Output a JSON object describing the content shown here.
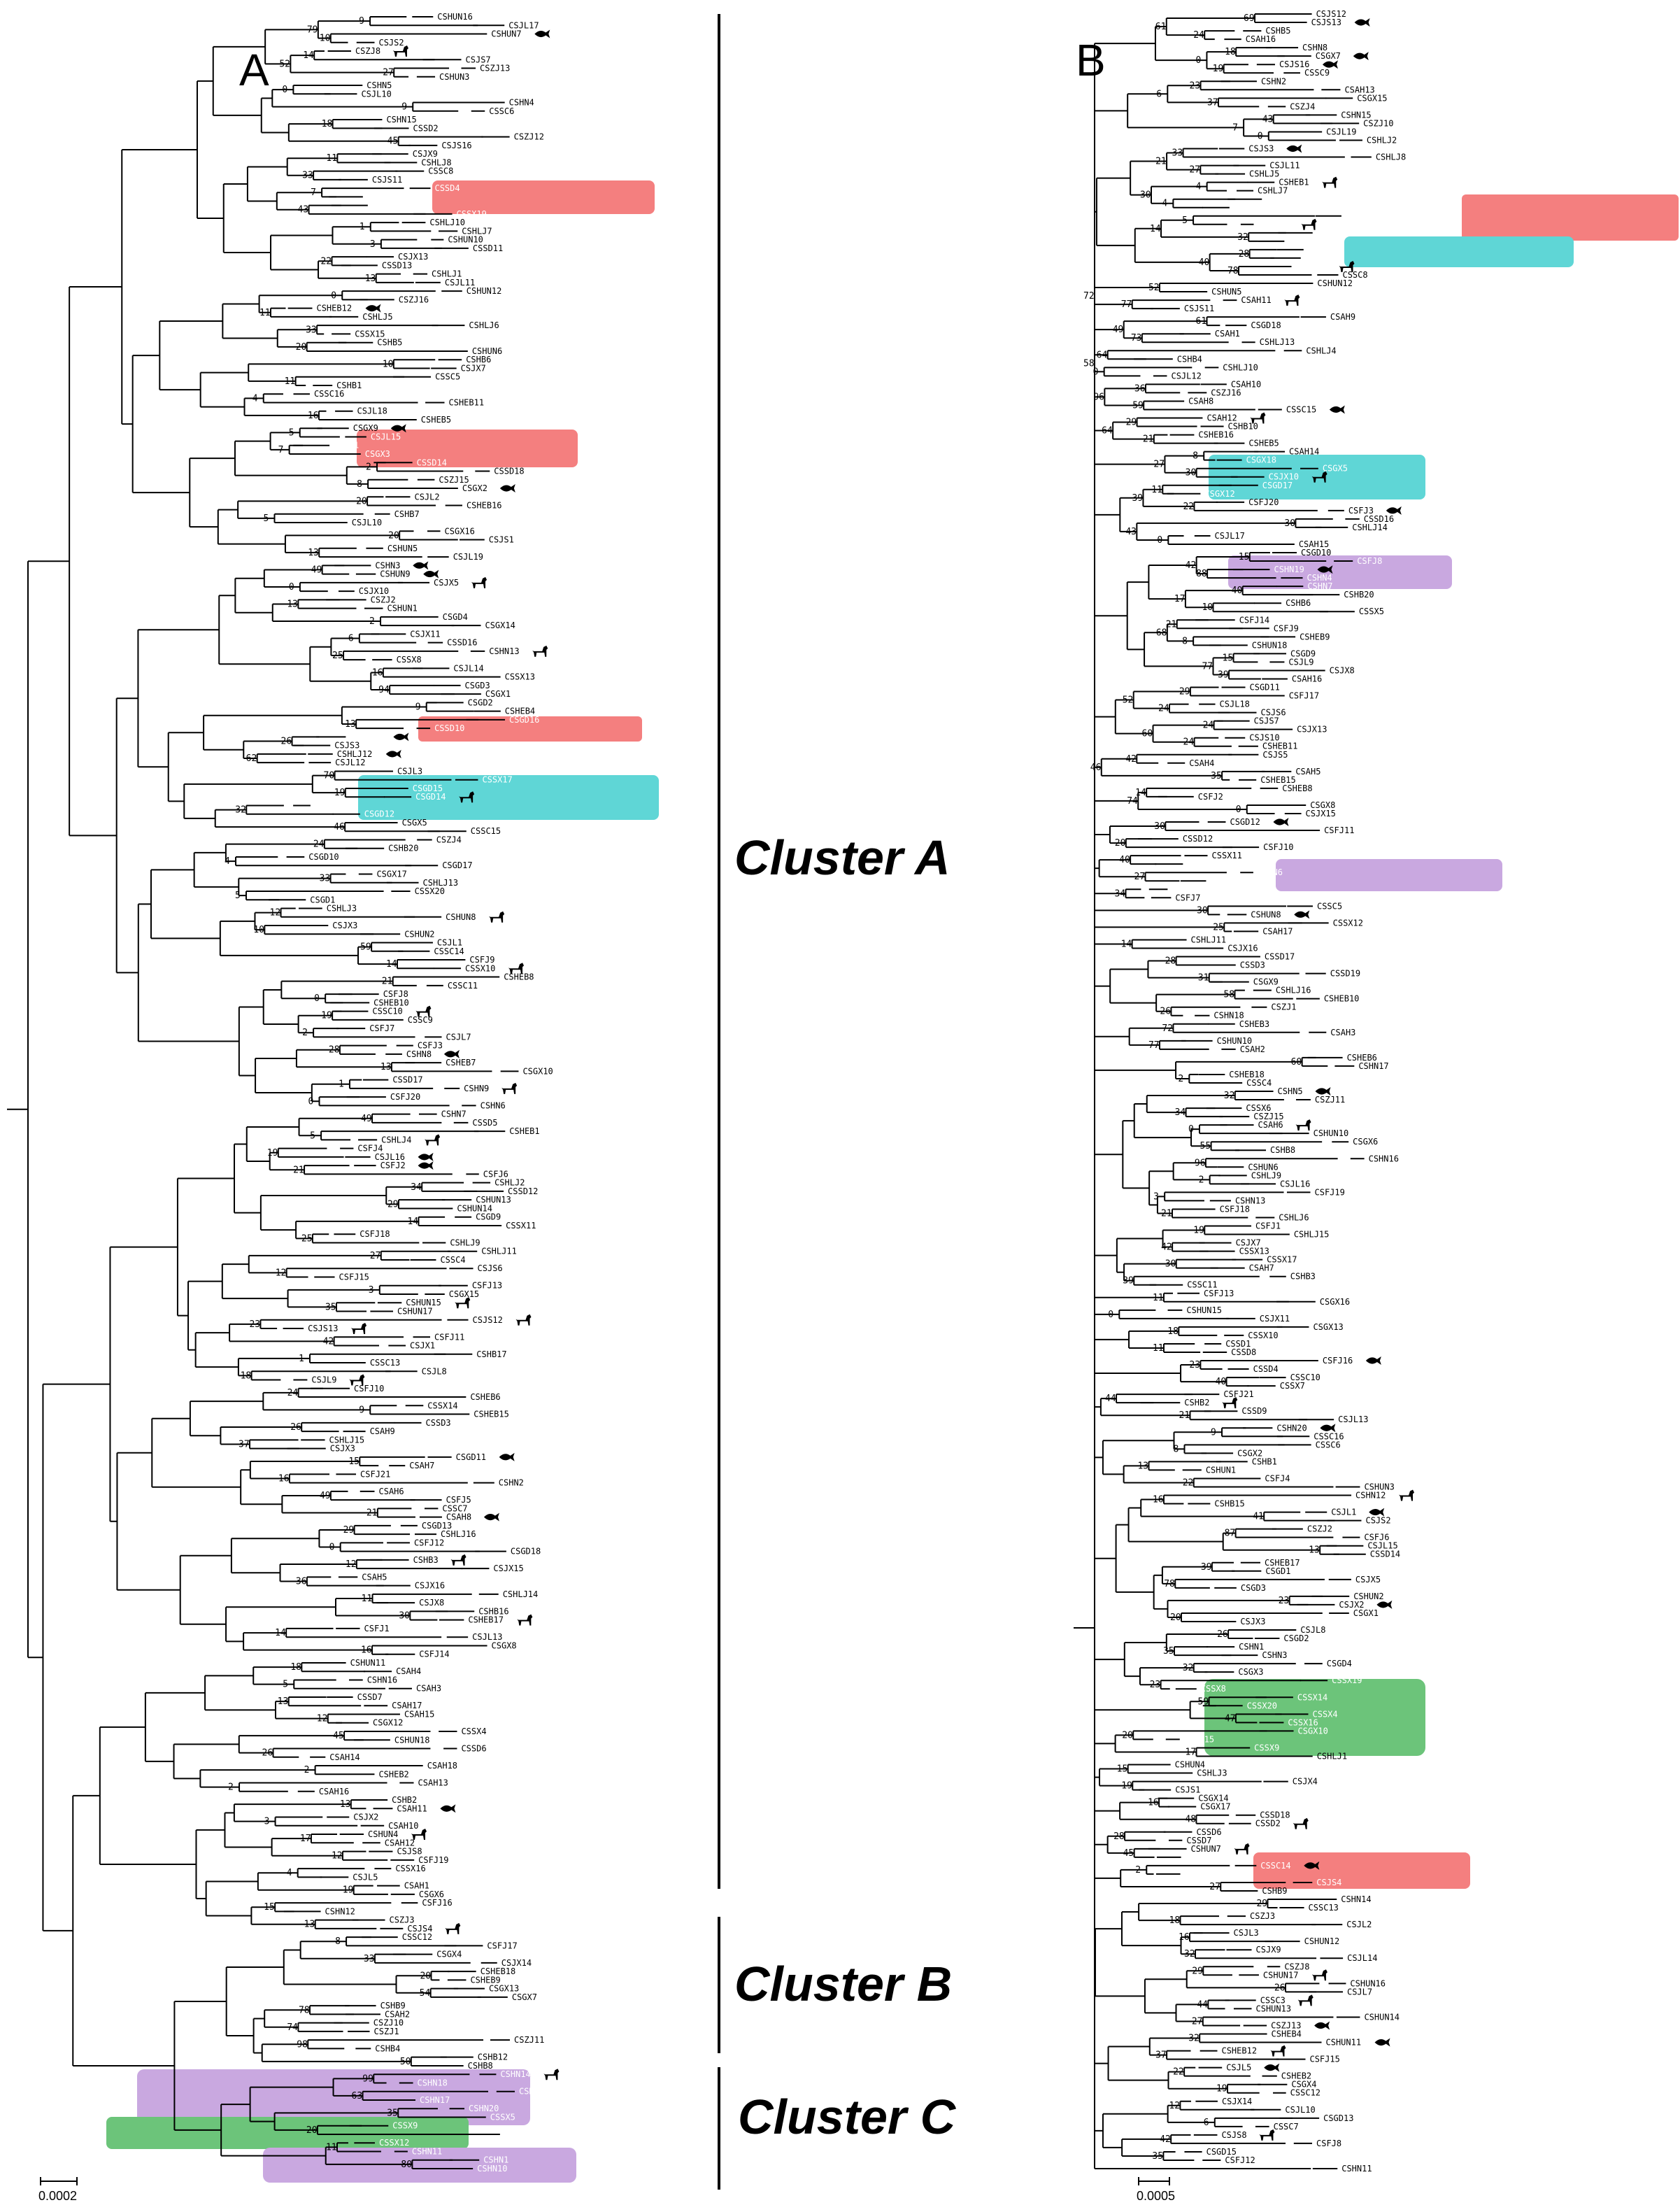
{
  "panels": {
    "a": {
      "letter": "A",
      "scale": "0.0002"
    },
    "b": {
      "letter": "B",
      "scale": "0.0005"
    }
  },
  "clusters": [
    "Cluster A",
    "Cluster B",
    "Cluster C"
  ],
  "colors": {
    "red": "#f47f7f",
    "cyan": "#5fd6d6",
    "purple": "#c9a8e0",
    "green": "#6cc47a",
    "branch": "#000000"
  },
  "icons": [
    "dog-icon",
    "fish-icon"
  ],
  "tree_a": {
    "leaves": [
      "CSHUN16",
      "CSJL17",
      "CSHUN7",
      "CSJS2",
      "CSZJ8",
      "CSJS7",
      "CSZJ13",
      "CSHUN3",
      "CSHN5",
      "CSJL10",
      "CSHN4",
      "CSSC6",
      "CSHN15",
      "CSSD2",
      "CSZJ12",
      "CSJS16",
      "CSJX9",
      "CSHLJ8",
      "CSSC8",
      "CSJS11",
      "CSSD4",
      "CSSX6",
      "CSSD9",
      "CSSX19",
      "CSHLJ10",
      "CSHLJ7",
      "CSHUN10",
      "CSSD11",
      "CSJX13",
      "CSSD13",
      "CSHLJ1",
      "CSJL11",
      "CSHUN12",
      "CSZJ16",
      "CSHEB12",
      "CSHLJ5",
      "CSHLJ6",
      "CSSX15",
      "CSHB5",
      "CSHUN6",
      "CSHB6",
      "CSJX7",
      "CSSC5",
      "CSHB1",
      "CSSC16",
      "CSHEB11",
      "CSJL18",
      "CSHEB5",
      "CSGX9",
      "CSJL15",
      "CSSD1",
      "CSGX3",
      "CSSD14",
      "CSSD18",
      "CSZJ15",
      "CSGX2",
      "CSJL2",
      "CSHEB16",
      "CSHB7",
      "CSJL10",
      "CSGX16",
      "CSJS1",
      "CSHUN5",
      "CSJL19",
      "CSHN3",
      "CSHUN9",
      "CSJX5",
      "CSJX10",
      "CSZJ2",
      "CSHUN1",
      "CSGD4",
      "CSGX14",
      "CSJX11",
      "CSSD16",
      "CSHN13",
      "CSSX8",
      "CSJL14",
      "CSSX13",
      "CSGD3",
      "CSGX1",
      "CSGD2",
      "CSHEB4",
      "CSGD16",
      "CSSD10",
      "CSSD15",
      "CSJS3",
      "CSHLJ12",
      "CSJL12",
      "CSJL3",
      "CSSX17",
      "CSGD15",
      "CSGD14",
      "CSGX11",
      "CSGD12",
      "CSGX5",
      "CSSC15",
      "CSZJ4",
      "CSHB20",
      "CSGD10",
      "CSGD17",
      "CSGX17",
      "CSHLJ13",
      "CSSX20",
      "CSGD1",
      "CSHLJ3",
      "CSHUN8",
      "CSJX3",
      "CSHUN2",
      "CSJL1",
      "CSSC14",
      "CSFJ9",
      "CSSX10",
      "CSHEB8",
      "CSSC11",
      "CSFJ8",
      "CSHEB10",
      "CSSC10",
      "CSSC9",
      "CSFJ7",
      "CSJL7",
      "CSFJ3",
      "CSHN8",
      "CSHEB7",
      "CSGX10",
      "CSSD17",
      "CSHN9",
      "CSFJ20",
      "CSHN6",
      "CSHN7",
      "CSSD5",
      "CSHEB1",
      "CSHLJ4",
      "CSFJ4",
      "CSJL16",
      "CSFJ2",
      "CSFJ6",
      "CSHLJ2",
      "CSSD12",
      "CSHUN13",
      "CSHUN14",
      "CSGD9",
      "CSSX11",
      "CSFJ18",
      "CSHLJ9",
      "CSHLJ11",
      "CSSC4",
      "CSJS6",
      "CSFJ15",
      "CSFJ13",
      "CSGX15",
      "CSHUN15",
      "CSHUN17",
      "CSJS12",
      "CSJS13",
      "CSFJ11",
      "CSJX1",
      "CSHB17",
      "CSSC13",
      "CSJL8",
      "CSJL9",
      "CSFJ10",
      "CSHEB6",
      "CSSX14",
      "CSHEB15",
      "CSSD3",
      "CSAH9",
      "CSHLJ15",
      "CSJX3",
      "CSGD11",
      "CSAH7",
      "CSFJ21",
      "CSHN2",
      "CSAH6",
      "CSFJ5",
      "CSSC7",
      "CSAH8",
      "CSGD13",
      "CSHLJ16",
      "CSFJ12",
      "CSGD18",
      "CSHB3",
      "CSJX15",
      "CSAH5",
      "CSJX16",
      "CSHLJ14",
      "CSJX8",
      "CSHB16",
      "CSHEB17",
      "CSFJ1",
      "CSJL13",
      "CSGX8",
      "CSFJ14",
      "CSHUN11",
      "CSAH4",
      "CSHN16",
      "CSAH3",
      "CSSD7",
      "CSAH17",
      "CSAH15",
      "CSGX12",
      "CSSX4",
      "CSHUN18",
      "CSSD6",
      "CSAH14",
      "CSAH18",
      "CSHEB2",
      "CSAH13",
      "CSAH16",
      "CSHB2",
      "CSAH11",
      "CSJX2",
      "CSAH10",
      "CSHUN4",
      "CSAH12",
      "CSJS8",
      "CSFJ19",
      "CSSX16",
      "CSJL5",
      "CSAH1",
      "CSGX6",
      "CSFJ16",
      "CSHN12",
      "CSZJ3",
      "CSJS4",
      "CSSC12",
      "CSFJ17",
      "CSGX4",
      "CSJX14",
      "CSHEB18",
      "CSHEB9",
      "CSGX13",
      "CSGX7",
      "CSHB9",
      "CSAH2",
      "CSZJ10",
      "CSZJ1",
      "CSZJ11",
      "CSHB4",
      "CSHB12",
      "CSHB8",
      "CSHN14",
      "CSHN18",
      "CSHN19",
      "CSHN17",
      "CSHN20",
      "CSSX5",
      "CSSX9",
      "CSSX7",
      "CSSX12",
      "CSHN11",
      "CSHN1",
      "CSHN10"
    ],
    "bootstrap": [
      "9",
      "10",
      "14",
      "27",
      "0",
      "9",
      "18",
      "45",
      "11",
      "33",
      "7",
      "43",
      "1",
      "3",
      "22",
      "13",
      "0",
      "11",
      "33",
      "20",
      "10",
      "11",
      "4",
      "16",
      "5",
      "7",
      "2",
      "8",
      "20",
      "5",
      "20",
      "13",
      "49",
      "0",
      "13",
      "2",
      "6",
      "25",
      "16",
      "94",
      "9",
      "13",
      "26",
      "62",
      "70",
      "19",
      "32",
      "46",
      "24",
      "4",
      "33",
      "5",
      "12",
      "10",
      "59",
      "14",
      "21",
      "0",
      "19",
      "2",
      "28",
      "13",
      "1",
      "0",
      "49",
      "5",
      "19",
      "21",
      "34",
      "29",
      "14",
      "25",
      "27",
      "12",
      "3",
      "35",
      "23",
      "42",
      "1",
      "18",
      "24",
      "9",
      "26",
      "37",
      "15",
      "16",
      "49",
      "21",
      "29",
      "0",
      "12",
      "36",
      "11",
      "30",
      "14",
      "16",
      "18",
      "5",
      "13",
      "12",
      "45",
      "26",
      "2",
      "2",
      "13",
      "3",
      "17",
      "12",
      "4",
      "19",
      "15",
      "13",
      "8",
      "33",
      "20",
      "54",
      "78",
      "74",
      "98",
      "50",
      "99",
      "63",
      "35",
      "20",
      "11",
      "80",
      "79",
      "52"
    ]
  },
  "tree_b": {
    "leaves": [
      "CSJS12",
      "CSJS13",
      "CSHB5",
      "CSAH16",
      "CSHN8",
      "CSGX7",
      "CSJS16",
      "CSSC9",
      "CSHN2",
      "CSAH13",
      "CSGX15",
      "CSZJ4",
      "CSHN15",
      "CSZJ10",
      "CSJL19",
      "CSHLJ2",
      "CSJS3",
      "CSHLJ8",
      "CSJL11",
      "CSHLJ5",
      "CSHEB1",
      "CSHLJ7",
      "CSSD10",
      "CSSD15",
      "CSSD11",
      "CSSD13",
      "CSZJ12",
      "CSGD14",
      "CSGD16",
      "CSGX11",
      "CSHEB7",
      "CSSC8",
      "CSHUN12",
      "CSHUN5",
      "CSAH11",
      "CSJS11",
      "CSAH9",
      "CSGD18",
      "CSAH1",
      "CSHLJ13",
      "CSHLJ4",
      "CSHB4",
      "CSHLJ10",
      "CSJL12",
      "CSAH10",
      "CSZJ16",
      "CSAH8",
      "CSSC15",
      "CSAH12",
      "CSHB10",
      "CSHEB16",
      "CSHEB5",
      "CSAH14",
      "CSGX18",
      "CSGX5",
      "CSJX10",
      "CSGD17",
      "CSGX12",
      "CSFJ20",
      "CSFJ3",
      "CSSD16",
      "CSHLJ14",
      "CSJL17",
      "CSAH15",
      "CSGD10",
      "CSFJ8",
      "CSHN19",
      "CSHN4",
      "CSHN7",
      "CSHB20",
      "CSHB6",
      "CSSX5",
      "CSFJ14",
      "CSFJ9",
      "CSHEB9",
      "CSHUN18",
      "CSGD9",
      "CSJL9",
      "CSJX8",
      "CSAH16",
      "CSGD11",
      "CSFJ17",
      "CSJL18",
      "CSJS6",
      "CSJS7",
      "CSJX13",
      "CSJS10",
      "CSHEB11",
      "CSJS5",
      "CSAH4",
      "CSAH5",
      "CSHEB15",
      "CSHEB8",
      "CSFJ2",
      "CSGX8",
      "CSJX15",
      "CSGD12",
      "CSFJ11",
      "CSSD12",
      "CSFJ10",
      "CSSX11",
      "CSHB17",
      "CSHN6",
      "CSHN9",
      "CSJX1",
      "CSFJ7",
      "CSSC5",
      "CSHUN8",
      "CSSX12",
      "CSAH17",
      "CSHLJ11",
      "CSJX16",
      "CSSD17",
      "CSSD3",
      "CSSD19",
      "CSGX9",
      "CSHLJ16",
      "CSHEB10",
      "CSZJ1",
      "CSHN18",
      "CSHEB3",
      "CSAH3",
      "CSHUN10",
      "CSAH2",
      "CSHEB6",
      "CSHN17",
      "CSHEB18",
      "CSSC4",
      "CSHN5",
      "CSZJ11",
      "CSSX6",
      "CSZJ15",
      "CSAH6",
      "CSHUN10",
      "CSGX6",
      "CSHB8",
      "CSHN16",
      "CSHUN6",
      "CSHLJ9",
      "CSJL16",
      "CSFJ19",
      "CSHN13",
      "CSFJ18",
      "CSHLJ6",
      "CSFJ1",
      "CSHLJ15",
      "CSJX7",
      "CSSX13",
      "CSSX17",
      "CSAH7",
      "CSHB3",
      "CSSC11",
      "CSFJ13",
      "CSGX16",
      "CSHUN15",
      "CSJX11",
      "CSGX13",
      "CSSX10",
      "CSSD1",
      "CSSD8",
      "CSFJ16",
      "CSSD4",
      "CSSC10",
      "CSSX7",
      "CSFJ21",
      "CSHB2",
      "CSSD9",
      "CSJL13",
      "CSHN20",
      "CSSC16",
      "CSSC6",
      "CSGX2",
      "CSHB1",
      "CSHUN1",
      "CSFJ4",
      "CSHUN3",
      "CSHN12",
      "CSHB15",
      "CSJL1",
      "CSJS2",
      "CSZJ2",
      "CSFJ6",
      "CSJL15",
      "CSSD14",
      "CSHEB17",
      "CSGD1",
      "CSJX5",
      "CSGD3",
      "CSHUN2",
      "CSJX2",
      "CSGX1",
      "CSJX3",
      "CSJL8",
      "CSGD2",
      "CSHN1",
      "CSHN3",
      "CSGD4",
      "CSGX3",
      "CSSX19",
      "CSSX8",
      "CSSX14",
      "CSSX20",
      "CSSX4",
      "CSSX16",
      "CSGX10",
      "CSSX15",
      "CSSX9",
      "CSHLJ1",
      "CSHUN4",
      "CSHLJ3",
      "CSJX4",
      "CSJS1",
      "CSGX14",
      "CSGX17",
      "CSSD18",
      "CSSD2",
      "CSSD6",
      "CSSD7",
      "CSHUN7",
      "CSHB12",
      "CSSC14",
      "CSHB7",
      "CSJS4",
      "CSHB9",
      "CSHN14",
      "CSSC13",
      "CSZJ3",
      "CSJL2",
      "CSJL3",
      "CSHUN12",
      "CSJX9",
      "CSJL14",
      "CSZJ8",
      "CSHUN17",
      "CSHUN16",
      "CSJL7",
      "CSSC3",
      "CSHUN13",
      "CSHUN14",
      "CSZJ13",
      "CSHEB4",
      "CSHUN11",
      "CSHEB12",
      "CSFJ15",
      "CSJL5",
      "CSHEB2",
      "CSGX4",
      "CSSC12",
      "CSJX14",
      "CSJL10",
      "CSGD13",
      "CSSC7",
      "CSJS8",
      "CSFJ8",
      "CSGD15",
      "CSFJ12",
      "CSHN11"
    ],
    "bootstrap": [
      "69",
      "24",
      "18",
      "19",
      "23",
      "37",
      "43",
      "0",
      "33",
      "27",
      "4",
      "4",
      "5",
      "32",
      "28",
      "78",
      "52",
      "77",
      "61",
      "73",
      "64",
      "0",
      "36",
      "59",
      "29",
      "21",
      "8",
      "30",
      "11",
      "22",
      "30",
      "0",
      "15",
      "88",
      "40",
      "10",
      "21",
      "8",
      "15",
      "39",
      "29",
      "24",
      "24",
      "24",
      "42",
      "35",
      "14",
      "0",
      "30",
      "20",
      "40",
      "27",
      "34",
      "30",
      "25",
      "14",
      "28",
      "31",
      "58",
      "26",
      "72",
      "77",
      "60",
      "2",
      "32",
      "34",
      "0",
      "55",
      "96",
      "2",
      "3",
      "21",
      "19",
      "42",
      "30",
      "39",
      "11",
      "0",
      "18",
      "11",
      "23",
      "40",
      "44",
      "21",
      "9",
      "8",
      "13",
      "22",
      "16",
      "41",
      "87",
      "13",
      "39",
      "78",
      "23",
      "20",
      "26",
      "35",
      "32",
      "23",
      "59",
      "47",
      "20",
      "17",
      "15",
      "19",
      "16",
      "48",
      "28",
      "45",
      "2",
      "27",
      "29",
      "18",
      "16",
      "32",
      "29",
      "26",
      "44",
      "27",
      "32",
      "37",
      "22",
      "19",
      "12",
      "6",
      "42",
      "35",
      "61",
      "0",
      "6",
      "7",
      "21",
      "30",
      "14",
      "40",
      "72",
      "49",
      "58",
      "96",
      "64",
      "27",
      "39",
      "43",
      "42",
      "17",
      "68",
      "77",
      "52",
      "60",
      "46",
      "74"
    ]
  },
  "chart_data": {
    "type": "diagram",
    "subtype": "phylogenetic-tree",
    "panels": [
      "A",
      "B"
    ],
    "scale_bars": [
      "0.0002",
      "0.0005"
    ],
    "clusters": [
      "Cluster A",
      "Cluster B",
      "Cluster C"
    ]
  }
}
